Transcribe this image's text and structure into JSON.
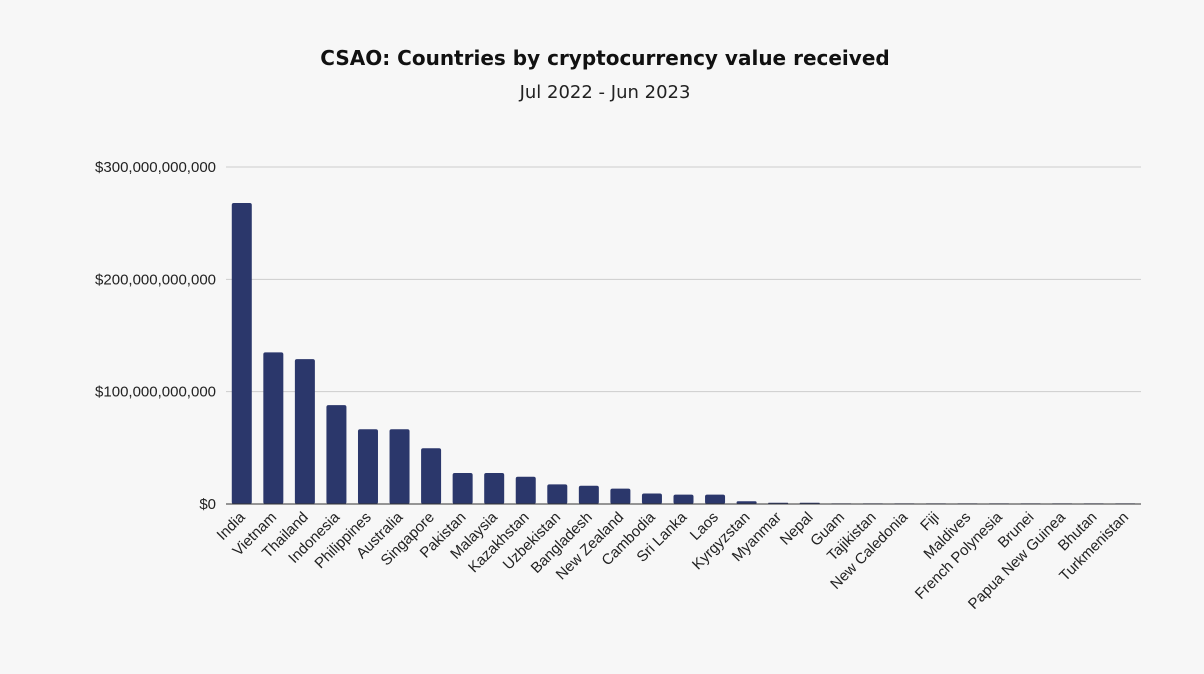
{
  "chart_data": {
    "type": "bar",
    "title": "CSAO: Countries by cryptocurrency value received",
    "subtitle": "Jul 2022 - Jun 2023",
    "xlabel": "",
    "ylabel": "",
    "ylim": [
      0,
      300000000000
    ],
    "yticks": [
      "$0",
      "$100,000,000,000",
      "$200,000,000,000",
      "$300,000,000,000"
    ],
    "grid": true,
    "bar_color": "#2b376b",
    "categories": [
      "India",
      "Vietnam",
      "Thailand",
      "Indonesia",
      "Philippines",
      "Australia",
      "Singapore",
      "Pakistan",
      "Malaysia",
      "Kazakhstan",
      "Uzbekistan",
      "Bangladesh",
      "New Zealand",
      "Cambodia",
      "Sri Lanka",
      "Laos",
      "Kyrgyzstan",
      "Myanmar",
      "Nepal",
      "Guam",
      "Tajikistan",
      "New Caledonia",
      "Fiji",
      "Maldives",
      "French Polynesia",
      "Brunei",
      "Papua New Guinea",
      "Bhutan",
      "Turkmenistan"
    ],
    "values": [
      268000000000,
      135000000000,
      129000000000,
      88000000000,
      66500000000,
      66500000000,
      49600000000,
      27600000000,
      27600000000,
      24300000000,
      17500000000,
      16300000000,
      13700000000,
      9300000000,
      8400000000,
      8400000000,
      2400000000,
      1100000000,
      1100000000,
      100000000,
      100000000,
      100000000,
      100000000,
      100000000,
      100000000,
      100000000,
      100000000,
      100000000,
      100000000
    ]
  }
}
